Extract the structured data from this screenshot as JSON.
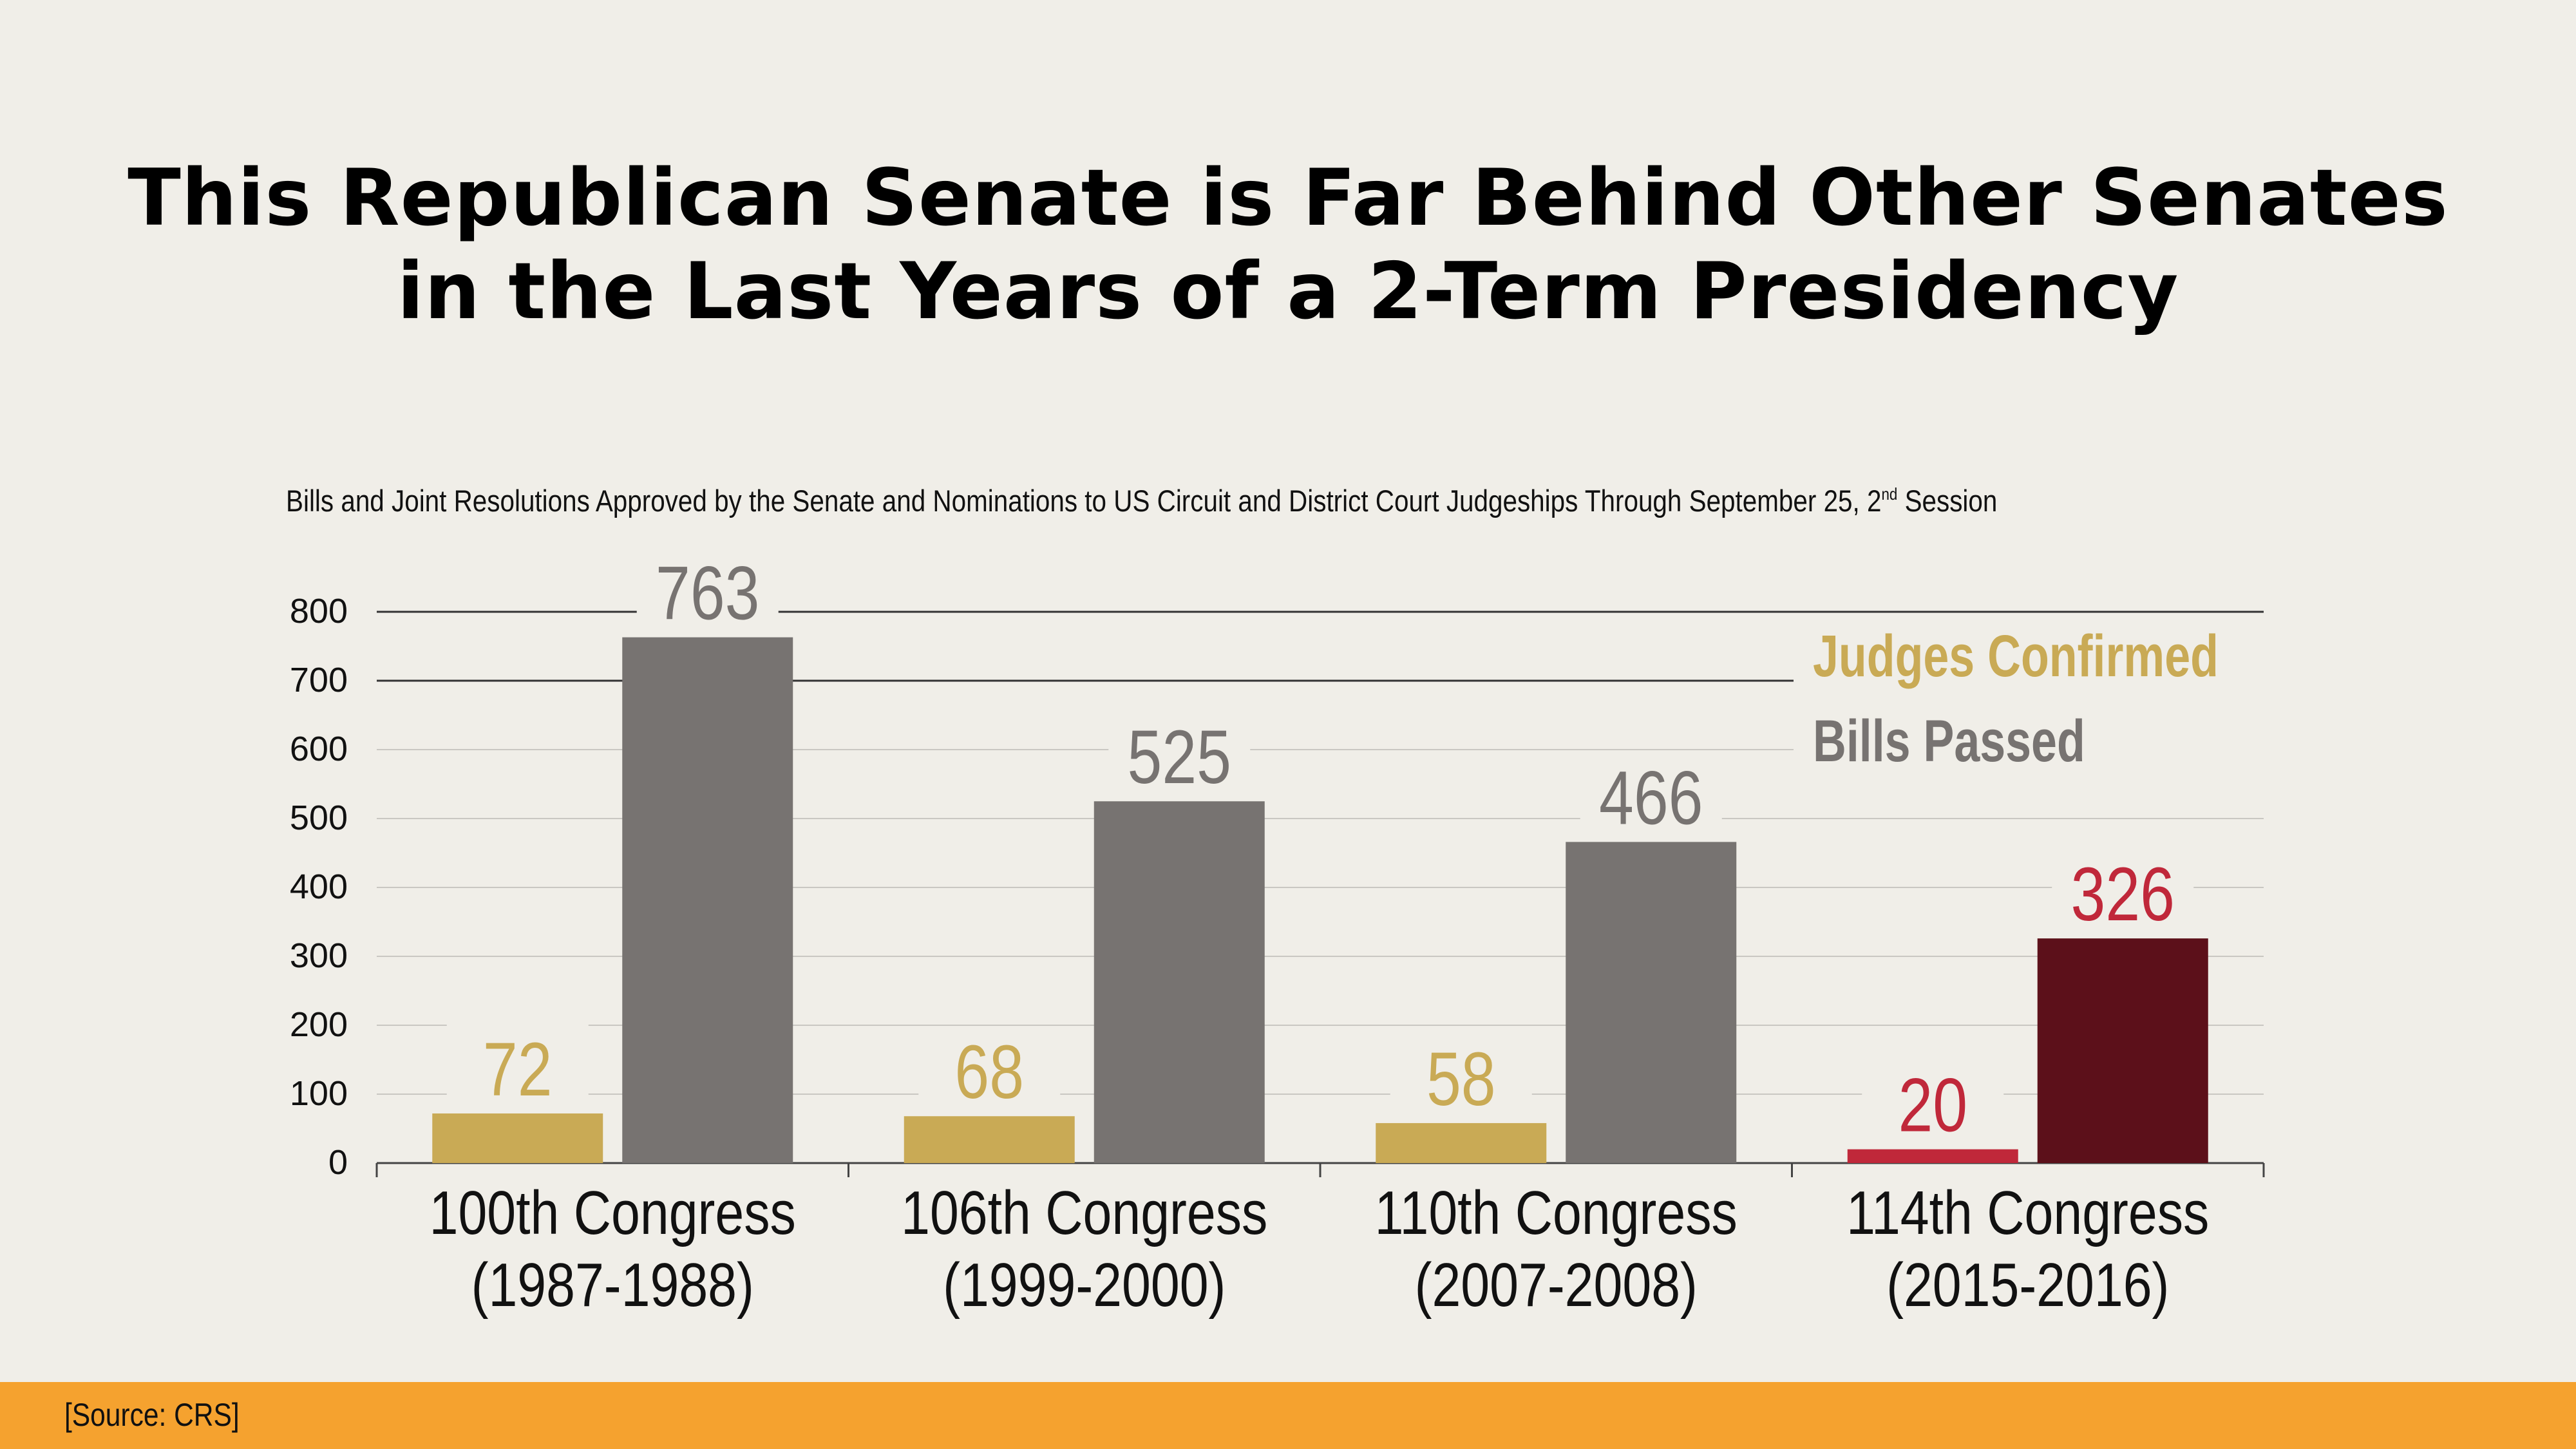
{
  "title_line1": "This Republican Senate is Far Behind Other Senates",
  "title_line2": "in the Last Years of a 2-Term Presidency",
  "subtitle_main": "Bills and Joint Resolutions Approved by the Senate and Nominations to US Circuit and District Court Judgeships Through September 25, 2",
  "subtitle_sup": "nd",
  "subtitle_end": " Session",
  "source": "[Source: CRS]",
  "colors": {
    "judges": "#c9aa55",
    "bills": "#777371",
    "highlight_judges": "#c0283a",
    "highlight_bills": "#5c101a",
    "background": "#f0eee8",
    "footer": "#f5a22f"
  },
  "chart_data": {
    "type": "bar",
    "categories": [
      [
        "100th Congress",
        "(1987-1988)"
      ],
      [
        "106th Congress",
        "(1999-2000)"
      ],
      [
        "110th Congress",
        "(2007-2008)"
      ],
      [
        "114th Congress",
        "(2015-2016)"
      ]
    ],
    "series": [
      {
        "name": "Judges Confirmed",
        "values": [
          72,
          68,
          58,
          20
        ]
      },
      {
        "name": "Bills Passed",
        "values": [
          763,
          525,
          466,
          326
        ]
      }
    ],
    "highlight_category": 3,
    "ylim": [
      0,
      800
    ],
    "yticks": [
      0,
      100,
      200,
      300,
      400,
      500,
      600,
      700,
      800
    ],
    "grid": true,
    "legend_position": "top-right",
    "data_labels": true
  }
}
